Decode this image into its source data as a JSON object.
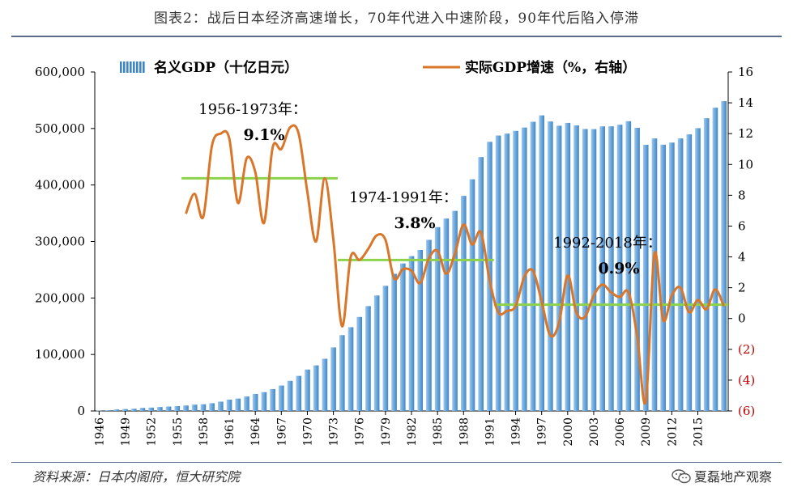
{
  "title": "图表2：战后日本经济高速增长，70年代进入中速阶段，90年代后陷入停滞",
  "source": "资料来源：日本内阁府，恒大研究院",
  "watermark": "夏磊地产观察",
  "watermark_icon": "wechat-icon",
  "chart_data": {
    "type": "bar+line",
    "legend": [
      "名义GDP（十亿日元）",
      "实际GDP增速（%，右轴）"
    ],
    "legend_placement": "top",
    "grid": false,
    "colors": {
      "bars": "#3f86c6",
      "line": "#d9762a",
      "avg": "#8cd24a",
      "negative": "#c00000"
    },
    "x_start": 1946,
    "x_end": 2018,
    "x_tick_labels": [
      "1946",
      "1949",
      "1952",
      "1955",
      "1958",
      "1961",
      "1964",
      "1967",
      "1970",
      "1973",
      "1976",
      "1979",
      "1982",
      "1985",
      "1988",
      "1991",
      "1994",
      "1997",
      "2000",
      "2003",
      "2006",
      "2009",
      "2012",
      "2015"
    ],
    "y_left": {
      "min": 0,
      "max": 600000,
      "ticks": [
        "0",
        "100,000",
        "200,000",
        "300,000",
        "400,000",
        "500,000",
        "600,000"
      ]
    },
    "y_right": {
      "min": -6,
      "max": 16,
      "ticks": [
        "(6)",
        "(4)",
        "(2)",
        "0",
        "2",
        "4",
        "6",
        "8",
        "10",
        "12",
        "14",
        "16"
      ]
    },
    "nominal_gdp": {
      "name": "名义GDP（十亿日元）",
      "years": [
        1946,
        1947,
        1948,
        1949,
        1950,
        1951,
        1952,
        1953,
        1954,
        1955,
        1956,
        1957,
        1958,
        1959,
        1960,
        1961,
        1962,
        1963,
        1964,
        1965,
        1966,
        1967,
        1968,
        1969,
        1970,
        1971,
        1972,
        1973,
        1974,
        1975,
        1976,
        1977,
        1978,
        1979,
        1980,
        1981,
        1982,
        1983,
        1984,
        1985,
        1986,
        1987,
        1988,
        1989,
        1990,
        1991,
        1992,
        1993,
        1994,
        1995,
        1996,
        1997,
        1998,
        1999,
        2000,
        2001,
        2002,
        2003,
        2004,
        2005,
        2006,
        2007,
        2008,
        2009,
        2010,
        2011,
        2012,
        2013,
        2014,
        2015,
        2016,
        2017,
        2018
      ],
      "values": [
        500,
        1300,
        2700,
        3400,
        4000,
        5400,
        6000,
        7000,
        7800,
        8600,
        9700,
        11200,
        11900,
        13700,
        16500,
        20100,
        22000,
        25600,
        30200,
        33300,
        38800,
        45000,
        53300,
        62100,
        73300,
        80700,
        92400,
        112500,
        134200,
        148300,
        166400,
        185600,
        204400,
        221500,
        242800,
        261100,
        274100,
        285000,
        302900,
        325400,
        340600,
        354200,
        380700,
        410100,
        449400,
        476400,
        487500,
        491000,
        495700,
        501700,
        511900,
        523200,
        512400,
        504900,
        509900,
        505500,
        499100,
        498900,
        503700,
        503900,
        506700,
        512900,
        501200,
        471100,
        482400,
        471300,
        475100,
        482400,
        489600,
        500600,
        518200,
        536800,
        548400
      ]
    },
    "real_growth": {
      "name": "实际GDP增速（%，右轴）",
      "years": [
        1956,
        1957,
        1958,
        1959,
        1960,
        1961,
        1962,
        1963,
        1964,
        1965,
        1966,
        1967,
        1968,
        1969,
        1970,
        1971,
        1972,
        1973,
        1974,
        1975,
        1976,
        1977,
        1978,
        1979,
        1980,
        1981,
        1982,
        1983,
        1984,
        1985,
        1986,
        1987,
        1988,
        1989,
        1990,
        1991,
        1992,
        1993,
        1994,
        1995,
        1996,
        1997,
        1998,
        1999,
        2000,
        2001,
        2002,
        2003,
        2004,
        2005,
        2006,
        2007,
        2008,
        2009,
        2010,
        2011,
        2012,
        2013,
        2014,
        2015,
        2016,
        2017,
        2018
      ],
      "values": [
        6.8,
        8.1,
        6.6,
        11.2,
        12.0,
        11.7,
        7.5,
        10.4,
        9.5,
        6.2,
        11.1,
        11.0,
        12.4,
        12.0,
        8.2,
        5.0,
        9.1,
        5.1,
        -0.5,
        4.0,
        3.8,
        4.5,
        5.4,
        5.1,
        2.6,
        3.2,
        3.1,
        2.3,
        3.9,
        4.4,
        2.9,
        4.2,
        6.1,
        4.8,
        5.6,
        2.5,
        0.4,
        0.5,
        0.8,
        2.7,
        3.1,
        1.1,
        -1.1,
        -0.3,
        2.8,
        0.4,
        0.1,
        1.5,
        2.2,
        1.7,
        1.4,
        1.7,
        -1.1,
        -5.4,
        4.2,
        -0.1,
        1.5,
        2.0,
        0.4,
        1.2,
        0.6,
        1.9,
        0.8
      ]
    },
    "period_averages": [
      {
        "period": "1956-1973年：",
        "value_label": "9.1%",
        "value": 9.1,
        "from": 1956,
        "to": 1973
      },
      {
        "period": "1974-1991年：",
        "value_label": "3.8%",
        "value": 3.8,
        "from": 1974,
        "to": 1991
      },
      {
        "period": "1992-2018年：",
        "value_label": "0.9%",
        "value": 0.9,
        "from": 1992,
        "to": 2018
      }
    ]
  }
}
